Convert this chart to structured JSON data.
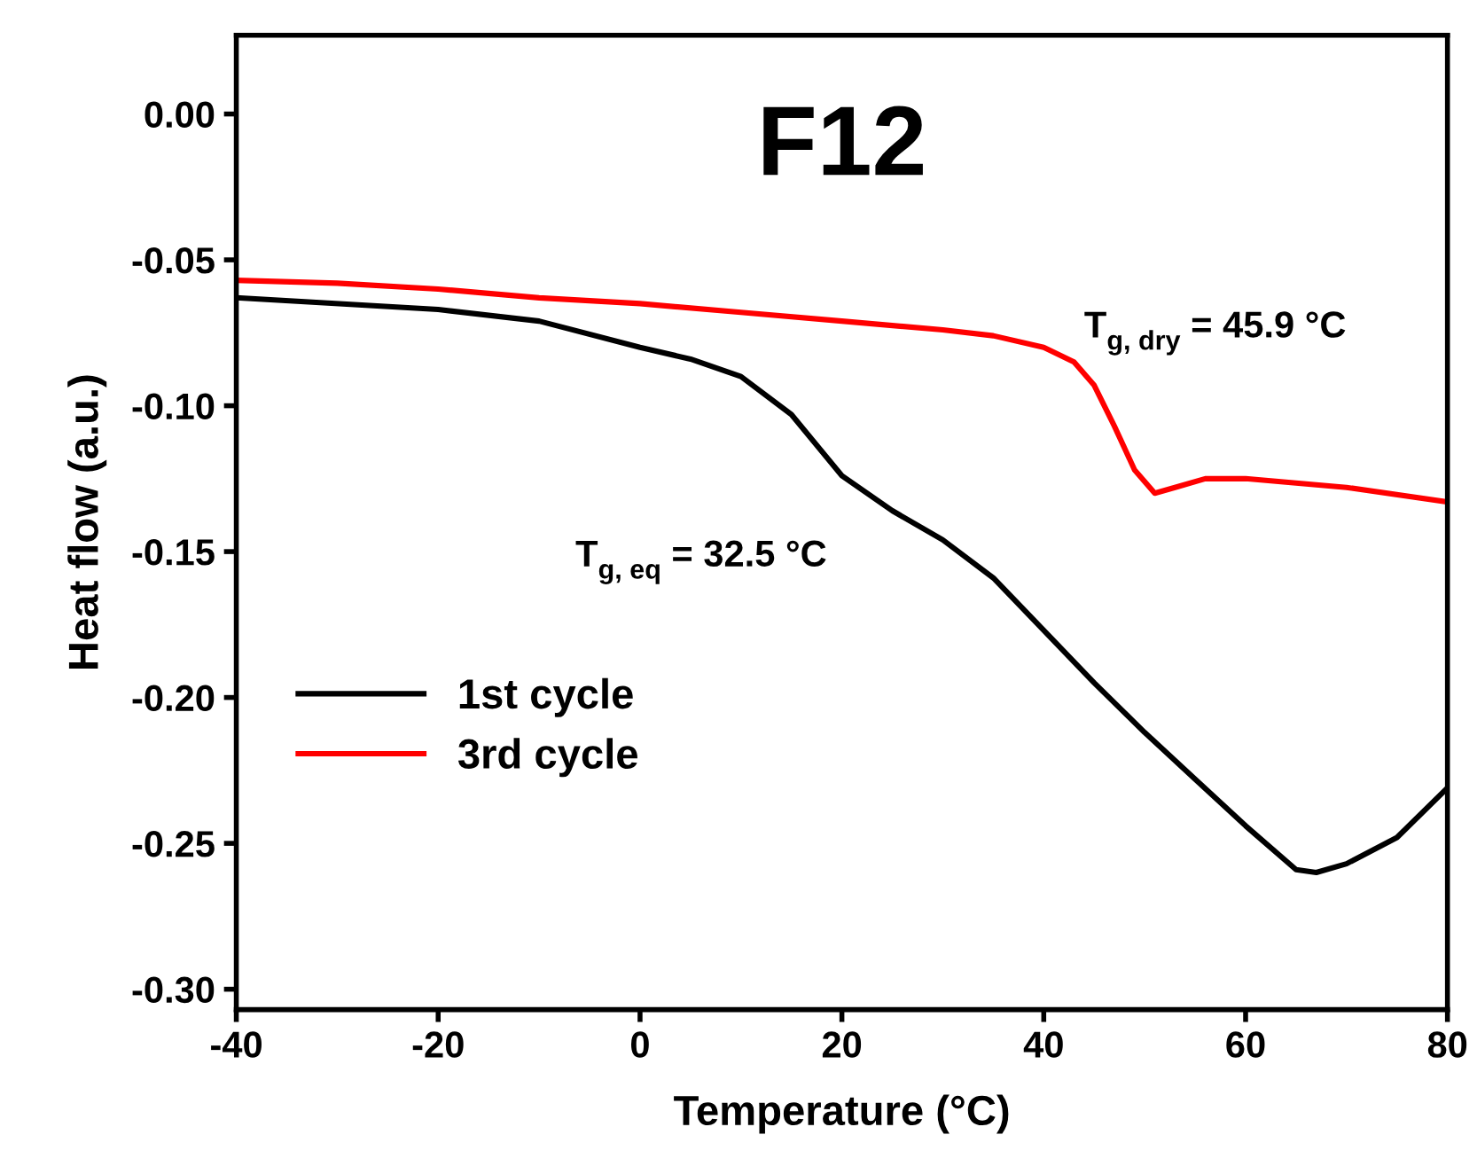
{
  "chart_data": {
    "type": "line",
    "title": "F12",
    "xlabel": "Temperature (°C)",
    "ylabel": "Heat flow (a.u.)",
    "annotations": [
      "T$_{g, dry}$ = 45.9 °C",
      "T$_{g, eq}$ = 32.5 °C"
    ],
    "series": [
      {
        "name": "1st cycle",
        "color": "#000000",
        "x": [
          -40,
          -20,
          -10,
          0,
          5,
          10,
          15,
          20,
          25,
          30,
          35,
          40,
          45,
          50,
          55,
          60,
          65,
          67,
          70,
          75,
          80
        ],
        "values": [
          -0.063,
          -0.067,
          -0.071,
          -0.08,
          -0.084,
          -0.09,
          -0.103,
          -0.124,
          -0.136,
          -0.146,
          -0.159,
          -0.177,
          -0.195,
          -0.212,
          -0.228,
          -0.244,
          -0.259,
          -0.26,
          -0.257,
          -0.248,
          -0.231
        ]
      },
      {
        "name": "3rd cycle",
        "color": "#ff0000",
        "x": [
          -40,
          -30,
          -20,
          -10,
          0,
          10,
          20,
          30,
          35,
          40,
          43,
          45,
          47,
          49,
          51,
          53,
          56,
          60,
          70,
          80
        ],
        "values": [
          -0.057,
          -0.058,
          -0.06,
          -0.063,
          -0.065,
          -0.068,
          -0.071,
          -0.074,
          -0.076,
          -0.08,
          -0.085,
          -0.093,
          -0.107,
          -0.122,
          -0.13,
          -0.128,
          -0.125,
          -0.125,
          -0.128,
          -0.133
        ]
      }
    ],
    "xlim": [
      -40,
      80
    ],
    "ylim": [
      -0.307,
      0.027
    ],
    "xticks": [
      {
        "value": -40,
        "label": "-40"
      },
      {
        "value": -20,
        "label": "-20"
      },
      0,
      20,
      40,
      60,
      80
    ],
    "yticks": [
      {
        "value": 0,
        "label": "0.00"
      },
      {
        "value": -0.05,
        "label": "-0.05"
      },
      {
        "value": -0.1,
        "label": "-0.10"
      },
      {
        "value": -0.15,
        "label": "-0.15"
      },
      {
        "value": -0.2,
        "label": "-0.20"
      },
      {
        "value": -0.25,
        "label": "-0.25"
      },
      {
        "value": -0.3,
        "label": "-0.30"
      }
    ],
    "grid": false,
    "legend": "bottom left",
    "marker": "none",
    "line_style": "solid"
  }
}
